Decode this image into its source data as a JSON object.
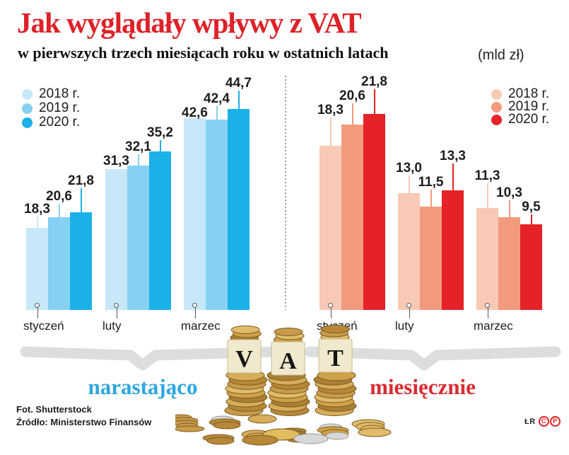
{
  "header": {
    "title": "Jak wyglądały wpływy z VAT",
    "subtitle": "w pierwszych trzech miesiącach roku w ostatnich latach",
    "unit": "(mld zł)"
  },
  "chart_data": [
    {
      "id": "narastajaco",
      "type": "bar",
      "group_label": "narastająco",
      "group_label_color": "#2ba7e0",
      "legend_position": "top-left",
      "categories": [
        "styczeń",
        "luty",
        "marzec"
      ],
      "series": [
        {
          "name": "2018 r.",
          "color": "#c7e8f9",
          "values": [
            18.3,
            31.3,
            42.6
          ],
          "value_labels": [
            "18,3",
            "31,3",
            "42,6"
          ]
        },
        {
          "name": "2019 r.",
          "color": "#86d1f2",
          "values": [
            20.6,
            32.1,
            42.4
          ],
          "value_labels": [
            "20,6",
            "32,1",
            "42,4"
          ]
        },
        {
          "name": "2020 r.",
          "color": "#1cb0e8",
          "values": [
            21.8,
            35.2,
            44.7
          ],
          "value_labels": [
            "21,8",
            "35,2",
            "44,7"
          ]
        }
      ],
      "ylim": [
        0,
        45
      ],
      "grid": false,
      "ylabel": "",
      "xlabel": ""
    },
    {
      "id": "miesiecznie",
      "type": "bar",
      "group_label": "miesięcznie",
      "group_label_color": "#d82c32",
      "legend_position": "top-right",
      "categories": [
        "styczeń",
        "luty",
        "marzec"
      ],
      "series": [
        {
          "name": "2018 r.",
          "color": "#f8c9b5",
          "values": [
            18.3,
            13.0,
            11.3
          ],
          "value_labels": [
            "18,3",
            "13,0",
            "11,3"
          ]
        },
        {
          "name": "2019 r.",
          "color": "#f29a7d",
          "values": [
            20.6,
            11.5,
            10.3
          ],
          "value_labels": [
            "20,6",
            "11,5",
            "10,3"
          ]
        },
        {
          "name": "2020 r.",
          "color": "#e52228",
          "values": [
            21.8,
            13.3,
            9.5
          ],
          "value_labels": [
            "21,8",
            "13,3",
            "9,5"
          ]
        }
      ],
      "ylim": [
        0,
        22
      ],
      "grid": false,
      "ylabel": "",
      "xlabel": ""
    }
  ],
  "decor": {
    "vat_letters": [
      "V",
      "A",
      "T"
    ]
  },
  "footer": {
    "credit_photo": "Fot. Shutterstock",
    "credit_source": "Źródło: Ministerstwo Finansów",
    "author_initials": "ŁR",
    "copyright_marks": [
      "C",
      "P"
    ]
  }
}
